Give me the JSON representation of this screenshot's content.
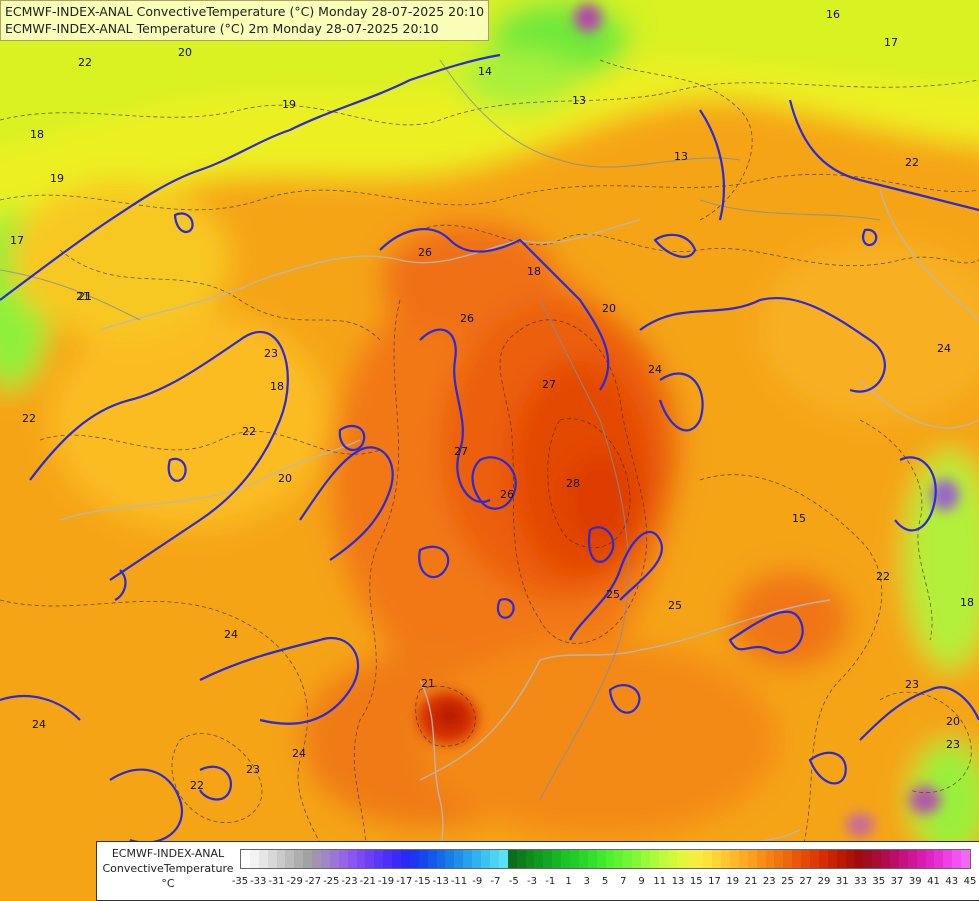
{
  "titles": {
    "line1": "ECMWF-INDEX-ANAL ConvectiveTemperature (°C) Monday 28-07-2025 20:10",
    "line2": "ECMWF-INDEX-ANAL Temperature (°C) 2m Monday 28-07-2025 20:10"
  },
  "legend": {
    "title_line1": "ECMWF-INDEX-ANAL",
    "title_line2": "ConvectiveTemperature",
    "title_line3": "°C",
    "ticks": [
      "-35",
      "-33",
      "-31",
      "-29",
      "-27",
      "-25",
      "-23",
      "-21",
      "-19",
      "-17",
      "-15",
      "-13",
      "-11",
      "-9",
      "-7",
      "-5",
      "-3",
      "-1",
      "1",
      "3",
      "5",
      "7",
      "9",
      "11",
      "13",
      "15",
      "17",
      "19",
      "21",
      "23",
      "25",
      "27",
      "29",
      "31",
      "33",
      "35",
      "37",
      "39",
      "41",
      "43",
      "45"
    ],
    "colors": [
      "#ffffff",
      "#f3f3f3",
      "#e6e6e6",
      "#d8d8d8",
      "#cacaca",
      "#bcbcbc",
      "#aeaeae",
      "#a2a2a2",
      "#a393b3",
      "#9f86c4",
      "#9a76d6",
      "#9466e6",
      "#8b56ef",
      "#7c4af2",
      "#6c40f4",
      "#5b38f5",
      "#4a30f6",
      "#3a2af6",
      "#2a2af6",
      "#1e36f2",
      "#1646ee",
      "#1458ea",
      "#146ae6",
      "#187ce6",
      "#1e8ee8",
      "#26a0ea",
      "#30b2ee",
      "#3cc4f0",
      "#4ad4f2",
      "#5ae2f4",
      "#0a6e1a",
      "#0c7c1c",
      "#0e8a1e",
      "#109820",
      "#14a622",
      "#18b424",
      "#1cc226",
      "#22cc28",
      "#2ad62a",
      "#34e02c",
      "#40e82e",
      "#4ef030",
      "#5ef432",
      "#70f634",
      "#84f836",
      "#98fa38",
      "#acfa3a",
      "#c0fa3c",
      "#d2f83e",
      "#e2f63e",
      "#eef23e",
      "#f8ec3c",
      "#fde23a",
      "#ffd636",
      "#ffc830",
      "#ffba2a",
      "#ffac24",
      "#fc9e1e",
      "#f89018",
      "#f48214",
      "#f07410",
      "#ec660c",
      "#e85808",
      "#e44a06",
      "#de3c04",
      "#d42e02",
      "#c82402",
      "#ba1a02",
      "#ac1206",
      "#a00c0e",
      "#a00c22",
      "#a80c38",
      "#b00c4e",
      "#ba0e66",
      "#c4127e",
      "#ce1696",
      "#d81cae",
      "#e024c4",
      "#e830d6",
      "#ee40e4",
      "#f252ee",
      "#f466f4"
    ]
  },
  "contours": {
    "convective_labels": [
      "22",
      "20",
      "19",
      "18",
      "19",
      "17",
      "21",
      "23",
      "18",
      "22",
      "20",
      "24",
      "24",
      "23",
      "22",
      "24",
      "26",
      "26",
      "18",
      "20",
      "24",
      "27",
      "27",
      "26",
      "28",
      "25",
      "25",
      "21",
      "23",
      "15",
      "22",
      "18",
      "20",
      "23",
      "22",
      "24",
      "14",
      "13",
      "13",
      "16",
      "17",
      "22",
      "21"
    ]
  }
}
